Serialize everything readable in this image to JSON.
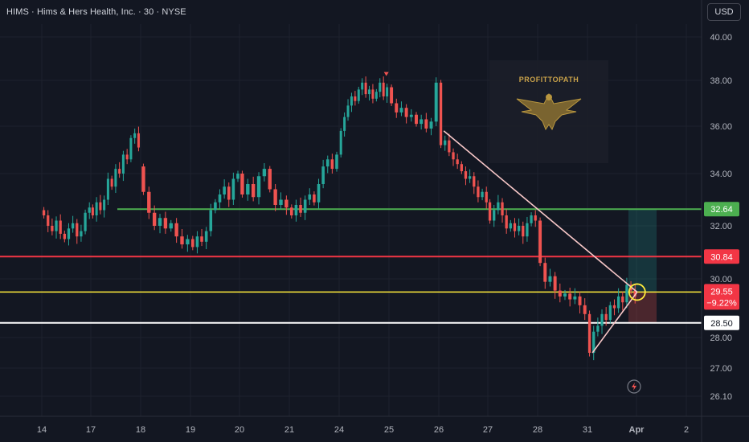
{
  "header": {
    "symbol_title": "HIMS · Hims & Hers Health, Inc. · 30 · NYSE",
    "currency_button": "USD"
  },
  "watermark": {
    "text": "PROFITTOPATH"
  },
  "colors": {
    "up": "#26a69a",
    "down": "#ef5350",
    "support_green": "#4caf50",
    "resistance_red": "#f23645",
    "entry_yellow": "#ffeb3b",
    "stop_white": "#ffffff",
    "trendline": "#f8c8c8",
    "background": "#131722"
  },
  "chart_data": {
    "type": "candlestick",
    "ylim": [
      25.8,
      40.5
    ],
    "y_ticks": [
      "40.00",
      "38.00",
      "36.00",
      "34.00",
      "32.00",
      "30.00",
      "28.00",
      "27.00",
      "26.10"
    ],
    "y_tick_values": [
      40.0,
      38.0,
      36.0,
      34.0,
      32.0,
      30.0,
      28.0,
      27.0,
      26.1
    ],
    "x_ticks": [
      "14",
      "17",
      "18",
      "19",
      "20",
      "21",
      "24",
      "25",
      "26",
      "27",
      "28",
      "31",
      "Apr",
      "2"
    ],
    "sessions": [
      {
        "label": "14",
        "points": [
          [
            32.6,
            32.4
          ],
          [
            32.4,
            32.0
          ],
          [
            32.0,
            31.8
          ],
          [
            31.8,
            32.2
          ],
          [
            32.2,
            31.7
          ],
          [
            31.7,
            31.5
          ],
          [
            31.5,
            31.9
          ],
          [
            31.9,
            32.1
          ],
          [
            32.1,
            31.6
          ],
          [
            31.6,
            31.8
          ],
          [
            31.8,
            32.5
          ],
          [
            32.5,
            32.7
          ]
        ]
      },
      {
        "label": "17",
        "points": [
          [
            32.7,
            32.4
          ],
          [
            32.4,
            32.9
          ],
          [
            32.9,
            32.6
          ],
          [
            32.6,
            33.0
          ],
          [
            33.0,
            33.8
          ],
          [
            33.8,
            33.5
          ],
          [
            33.5,
            34.2
          ],
          [
            34.2,
            34.0
          ],
          [
            34.0,
            34.8
          ],
          [
            34.8,
            34.6
          ],
          [
            34.6,
            35.5
          ],
          [
            35.5,
            35.7
          ],
          [
            35.7,
            35.1
          ]
        ]
      },
      {
        "label": "18",
        "points": [
          [
            34.3,
            33.3
          ],
          [
            33.3,
            32.5
          ],
          [
            32.5,
            32.0
          ],
          [
            32.0,
            32.3
          ],
          [
            32.3,
            31.9
          ],
          [
            31.9,
            32.1
          ],
          [
            32.1,
            31.6
          ],
          [
            31.6,
            31.3
          ],
          [
            31.3,
            31.5
          ]
        ]
      },
      {
        "label": "19",
        "points": [
          [
            31.5,
            31.2
          ],
          [
            31.2,
            31.6
          ],
          [
            31.6,
            31.4
          ],
          [
            31.4,
            31.8
          ],
          [
            31.8,
            32.6
          ],
          [
            32.6,
            32.9
          ],
          [
            32.9,
            33.2
          ],
          [
            33.2,
            33.5
          ],
          [
            33.5,
            33.0
          ],
          [
            33.0,
            33.8
          ],
          [
            33.8,
            34.0
          ]
        ]
      },
      {
        "label": "20",
        "points": [
          [
            34.0,
            33.2
          ],
          [
            33.2,
            33.6
          ],
          [
            33.6,
            33.1
          ],
          [
            33.1,
            33.9
          ],
          [
            33.9,
            34.2
          ],
          [
            34.2,
            33.4
          ],
          [
            33.4,
            32.8
          ],
          [
            32.8,
            33.0
          ],
          [
            33.0,
            32.7
          ]
        ]
      },
      {
        "label": "21",
        "points": [
          [
            32.7,
            32.4
          ],
          [
            32.4,
            32.8
          ],
          [
            32.8,
            32.5
          ],
          [
            32.5,
            33.0
          ],
          [
            33.0,
            33.2
          ],
          [
            33.2,
            32.9
          ],
          [
            32.9,
            33.6
          ],
          [
            33.6,
            34.3
          ],
          [
            34.3,
            34.6
          ],
          [
            34.6,
            34.2
          ],
          [
            34.2,
            34.8
          ]
        ]
      },
      {
        "label": "24",
        "points": [
          [
            34.8,
            35.8
          ],
          [
            35.8,
            36.4
          ],
          [
            36.4,
            36.9
          ],
          [
            36.9,
            37.3
          ],
          [
            37.3,
            37.1
          ],
          [
            37.1,
            37.6
          ],
          [
            37.6,
            37.9
          ],
          [
            37.9,
            37.4
          ],
          [
            37.4,
            37.6
          ],
          [
            37.6,
            37.2
          ],
          [
            37.2,
            37.5
          ],
          [
            37.5,
            37.9
          ],
          [
            37.9,
            37.3
          ],
          [
            37.3,
            37.7
          ]
        ]
      },
      {
        "label": "25",
        "points": [
          [
            37.7,
            37.0
          ],
          [
            37.0,
            36.6
          ],
          [
            36.6,
            36.8
          ],
          [
            36.8,
            36.4
          ],
          [
            36.4,
            36.5
          ],
          [
            36.5,
            36.1
          ],
          [
            36.1,
            36.3
          ],
          [
            36.3,
            35.9
          ],
          [
            35.9,
            36.2
          ],
          [
            36.2,
            37.9
          ]
        ]
      },
      {
        "label": "26",
        "points": [
          [
            37.9,
            35.2
          ],
          [
            35.2,
            35.4
          ],
          [
            35.4,
            34.9
          ],
          [
            34.9,
            34.6
          ],
          [
            34.6,
            34.4
          ],
          [
            34.4,
            34.1
          ],
          [
            34.1,
            33.8
          ],
          [
            33.8,
            33.9
          ],
          [
            33.9,
            33.5
          ],
          [
            33.5,
            33.1
          ],
          [
            33.1,
            33.3
          ],
          [
            33.3,
            32.9
          ]
        ]
      },
      {
        "label": "27",
        "points": [
          [
            32.9,
            32.2
          ],
          [
            32.2,
            32.6
          ],
          [
            32.6,
            32.9
          ],
          [
            32.9,
            32.4
          ],
          [
            32.4,
            31.9
          ],
          [
            31.9,
            32.1
          ],
          [
            32.1,
            31.8
          ],
          [
            31.8,
            32.0
          ],
          [
            32.0,
            31.6
          ],
          [
            31.6,
            32.1
          ],
          [
            32.1,
            32.4
          ],
          [
            32.4,
            32.2
          ]
        ]
      },
      {
        "label": "28",
        "points": [
          [
            32.2,
            30.6
          ],
          [
            30.6,
            29.9
          ],
          [
            29.9,
            30.1
          ],
          [
            30.1,
            29.6
          ],
          [
            29.6,
            29.4
          ],
          [
            29.4,
            29.5
          ],
          [
            29.5,
            29.3
          ],
          [
            29.3,
            29.4
          ],
          [
            29.4,
            29.1
          ],
          [
            29.1,
            28.8
          ]
        ]
      },
      {
        "label": "31",
        "points": [
          [
            28.8,
            27.5
          ],
          [
            27.5,
            28.2
          ],
          [
            28.2,
            28.4
          ],
          [
            28.4,
            28.8
          ],
          [
            28.8,
            28.6
          ],
          [
            28.6,
            29.1
          ],
          [
            29.1,
            29.0
          ],
          [
            29.0,
            29.4
          ],
          [
            29.4,
            29.2
          ],
          [
            29.2,
            29.8
          ],
          [
            29.8,
            29.6
          ],
          [
            29.6,
            29.4
          ]
        ]
      },
      {
        "label": "Apr",
        "points": []
      },
      {
        "label": "2",
        "points": []
      }
    ],
    "horizontal_levels": [
      {
        "value": 32.64,
        "label": "32.64",
        "color": "green"
      },
      {
        "value": 30.84,
        "label": "30.84",
        "color": "red"
      },
      {
        "value": 29.55,
        "label": "29.55",
        "sublabel": "−9.22%",
        "color": "yellow"
      },
      {
        "value": 28.5,
        "label": "28.50",
        "color": "white"
      }
    ],
    "descending_trendline": {
      "from": {
        "x_session": "26",
        "x_offset": 0.1,
        "y": 35.8
      },
      "to": {
        "x_session": "31",
        "x_offset": 1.0,
        "y": 29.55
      }
    },
    "ascending_trendline": {
      "from": {
        "x_session": "31",
        "x_offset": 0.1,
        "y": 27.5
      },
      "to": {
        "x_session": "31",
        "x_offset": 1.0,
        "y": 29.55
      }
    },
    "position_box": {
      "entry": 29.55,
      "target": 32.64,
      "stop": 28.5
    },
    "highlight_circle": {
      "session": "31",
      "offset": 1.0,
      "y": 29.55
    },
    "marker_arrow": {
      "session": "24",
      "offset": 0.95,
      "y": 38.2
    }
  }
}
